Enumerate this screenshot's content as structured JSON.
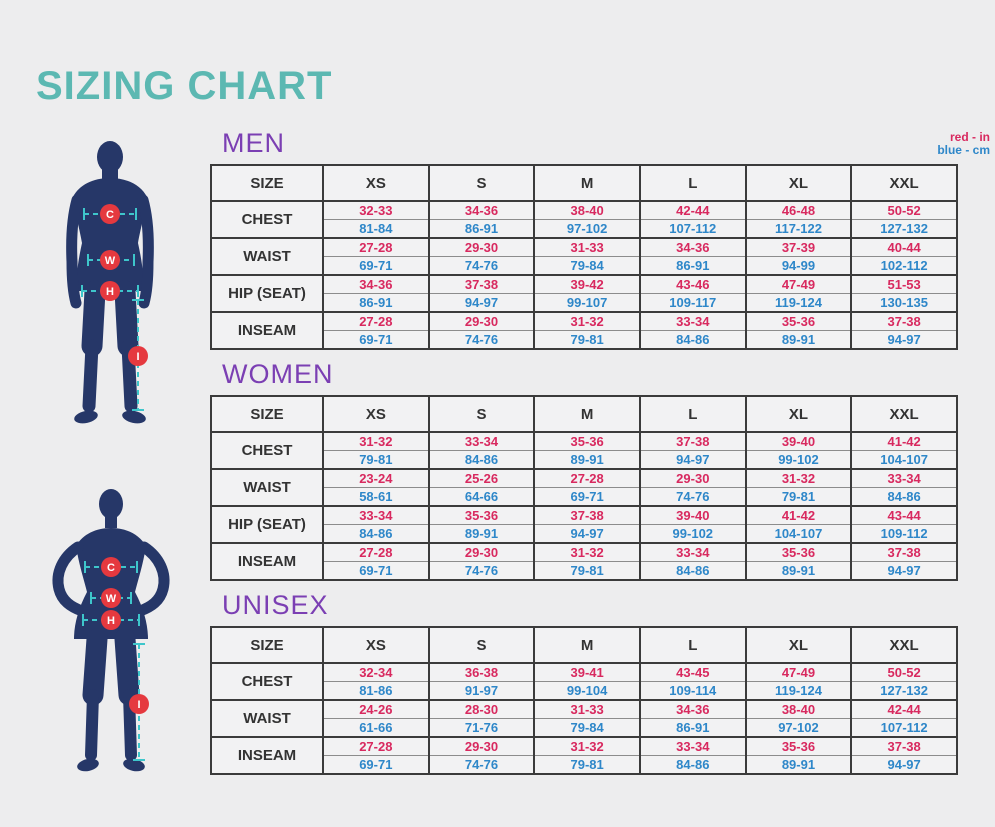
{
  "title": "SIZING CHART",
  "legend": {
    "red": "red - in",
    "blue": "blue - cm"
  },
  "figures": {
    "markers": {
      "chest": "C",
      "waist": "W",
      "hip": "H",
      "inseam": "I"
    }
  },
  "colors": {
    "background": "#ededee",
    "title_teal": "#5cb8b2",
    "section_purple": "#7b3fb3",
    "inches_red": "#d8295f",
    "cm_blue": "#2e87c9",
    "table_text": "#333333",
    "table_border": "#3b3b3b",
    "silhouette_navy": "#263768",
    "marker_red": "#e5393f",
    "measure_teal": "#3ec6cb"
  },
  "tables": [
    {
      "section": "MEN",
      "size_header": "SIZE",
      "sizes": [
        "XS",
        "S",
        "M",
        "L",
        "XL",
        "XXL"
      ],
      "rows": [
        {
          "label": "CHEST",
          "in": [
            "32-33",
            "34-36",
            "38-40",
            "42-44",
            "46-48",
            "50-52"
          ],
          "cm": [
            "81-84",
            "86-91",
            "97-102",
            "107-112",
            "117-122",
            "127-132"
          ]
        },
        {
          "label": "WAIST",
          "in": [
            "27-28",
            "29-30",
            "31-33",
            "34-36",
            "37-39",
            "40-44"
          ],
          "cm": [
            "69-71",
            "74-76",
            "79-84",
            "86-91",
            "94-99",
            "102-112"
          ]
        },
        {
          "label": "HIP (SEAT)",
          "in": [
            "34-36",
            "37-38",
            "39-42",
            "43-46",
            "47-49",
            "51-53"
          ],
          "cm": [
            "86-91",
            "94-97",
            "99-107",
            "109-117",
            "119-124",
            "130-135"
          ]
        },
        {
          "label": "INSEAM",
          "in": [
            "27-28",
            "29-30",
            "31-32",
            "33-34",
            "35-36",
            "37-38"
          ],
          "cm": [
            "69-71",
            "74-76",
            "79-81",
            "84-86",
            "89-91",
            "94-97"
          ]
        }
      ]
    },
    {
      "section": "WOMEN",
      "size_header": "SIZE",
      "sizes": [
        "XS",
        "S",
        "M",
        "L",
        "XL",
        "XXL"
      ],
      "rows": [
        {
          "label": "CHEST",
          "in": [
            "31-32",
            "33-34",
            "35-36",
            "37-38",
            "39-40",
            "41-42"
          ],
          "cm": [
            "79-81",
            "84-86",
            "89-91",
            "94-97",
            "99-102",
            "104-107"
          ]
        },
        {
          "label": "WAIST",
          "in": [
            "23-24",
            "25-26",
            "27-28",
            "29-30",
            "31-32",
            "33-34"
          ],
          "cm": [
            "58-61",
            "64-66",
            "69-71",
            "74-76",
            "79-81",
            "84-86"
          ]
        },
        {
          "label": "HIP (SEAT)",
          "in": [
            "33-34",
            "35-36",
            "37-38",
            "39-40",
            "41-42",
            "43-44"
          ],
          "cm": [
            "84-86",
            "89-91",
            "94-97",
            "99-102",
            "104-107",
            "109-112"
          ]
        },
        {
          "label": "INSEAM",
          "in": [
            "27-28",
            "29-30",
            "31-32",
            "33-34",
            "35-36",
            "37-38"
          ],
          "cm": [
            "69-71",
            "74-76",
            "79-81",
            "84-86",
            "89-91",
            "94-97"
          ]
        }
      ]
    },
    {
      "section": "UNISEX",
      "size_header": "SIZE",
      "sizes": [
        "XS",
        "S",
        "M",
        "L",
        "XL",
        "XXL"
      ],
      "rows": [
        {
          "label": "CHEST",
          "in": [
            "32-34",
            "36-38",
            "39-41",
            "43-45",
            "47-49",
            "50-52"
          ],
          "cm": [
            "81-86",
            "91-97",
            "99-104",
            "109-114",
            "119-124",
            "127-132"
          ]
        },
        {
          "label": "WAIST",
          "in": [
            "24-26",
            "28-30",
            "31-33",
            "34-36",
            "38-40",
            "42-44"
          ],
          "cm": [
            "61-66",
            "71-76",
            "79-84",
            "86-91",
            "97-102",
            "107-112"
          ]
        },
        {
          "label": "INSEAM",
          "in": [
            "27-28",
            "29-30",
            "31-32",
            "33-34",
            "35-36",
            "37-38"
          ],
          "cm": [
            "69-71",
            "74-76",
            "79-81",
            "84-86",
            "89-91",
            "94-97"
          ]
        }
      ]
    }
  ]
}
